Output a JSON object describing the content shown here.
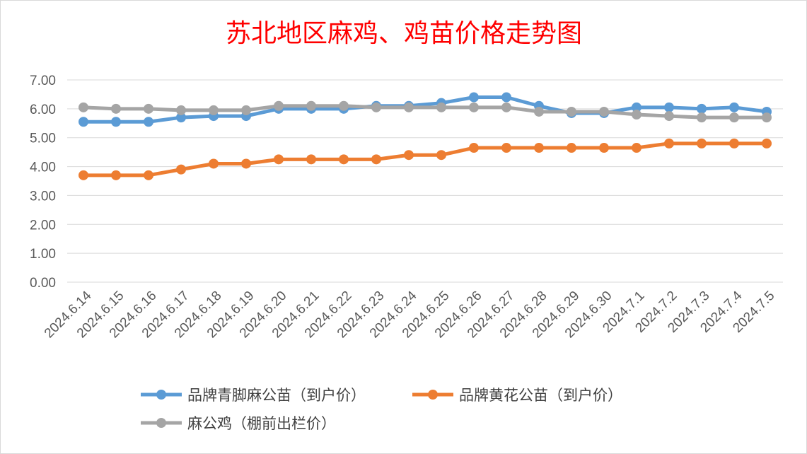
{
  "chart_data": {
    "type": "line",
    "title": "苏北地区麻鸡、鸡苗价格走势图",
    "categories": [
      "2024.6.14",
      "2024.6.15",
      "2024.6.16",
      "2024.6.17",
      "2024.6.18",
      "2024.6.19",
      "2024.6.20",
      "2024.6.21",
      "2024.6.22",
      "2024.6.23",
      "2024.6.24",
      "2024.6.25",
      "2024.6.26",
      "2024.6.27",
      "2024.6.28",
      "2024.6.29",
      "2024.6.30",
      "2024.7.1",
      "2024.7.2",
      "2024.7.3",
      "2024.7.4",
      "2024.7.5"
    ],
    "ylim": [
      0,
      7
    ],
    "yticks": [
      "0.00",
      "1.00",
      "2.00",
      "3.00",
      "4.00",
      "5.00",
      "6.00",
      "7.00"
    ],
    "grid": true,
    "legend_position": "bottom",
    "series": [
      {
        "name": "品牌青脚麻公苗（到户价）",
        "color": "#5b9bd5",
        "values": [
          5.55,
          5.55,
          5.55,
          5.7,
          5.75,
          5.75,
          6.0,
          6.0,
          6.0,
          6.1,
          6.1,
          6.2,
          6.4,
          6.4,
          6.1,
          5.85,
          5.85,
          6.05,
          6.05,
          6.0,
          6.05,
          5.9
        ]
      },
      {
        "name": "品牌黄花公苗（到户价）",
        "color": "#ed7d31",
        "values": [
          3.7,
          3.7,
          3.7,
          3.9,
          4.1,
          4.1,
          4.25,
          4.25,
          4.25,
          4.25,
          4.4,
          4.4,
          4.65,
          4.65,
          4.65,
          4.65,
          4.65,
          4.65,
          4.8,
          4.8,
          4.8,
          4.8
        ]
      },
      {
        "name": "麻公鸡（棚前出栏价）",
        "color": "#a5a5a5",
        "values": [
          6.05,
          6.0,
          6.0,
          5.95,
          5.95,
          5.95,
          6.1,
          6.1,
          6.1,
          6.05,
          6.05,
          6.05,
          6.05,
          6.05,
          5.9,
          5.9,
          5.9,
          5.8,
          5.75,
          5.7,
          5.7,
          5.7
        ]
      }
    ]
  }
}
